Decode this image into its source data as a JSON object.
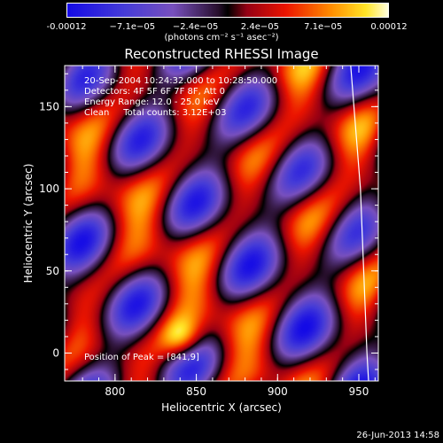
{
  "colorbar": {
    "ticks": [
      "-0.00012",
      "−7.1e−05",
      "−2.4e−05",
      "2.4e−05",
      "7.1e−05",
      "0.00012"
    ],
    "tick_values": [
      -0.00012,
      -7.1e-05,
      -2.4e-05,
      2.4e-05,
      7.1e-05,
      0.00012
    ],
    "units": "(photons cm⁻² s⁻¹ asec⁻²)",
    "range": [
      -0.00012,
      0.00012
    ]
  },
  "chart_data": {
    "type": "heatmap",
    "title": "Reconstructed RHESSI Image",
    "xlabel": "Heliocentric X (arcsec)",
    "ylabel": "Heliocentric Y (arcsec)",
    "xlim": [
      769,
      962
    ],
    "ylim": [
      -17,
      175
    ],
    "xticks": [
      "800",
      "850",
      "900",
      "950"
    ],
    "xtick_values": [
      800,
      850,
      900,
      950
    ],
    "yticks": [
      "0",
      "50",
      "100",
      "150"
    ],
    "ytick_values": [
      0,
      50,
      100,
      150
    ],
    "limb_x_at_y": [
      [
        945,
        175
      ],
      [
        951,
        100
      ],
      [
        955,
        0
      ],
      [
        956,
        -17
      ]
    ],
    "peak": [
      841,
      9
    ]
  },
  "annotations": {
    "line1": "20-Sep-2004 10:24:32.000 to 10:28:50.000",
    "line2": "Detectors: 4F 5F 6F 7F 8F, Att 0",
    "line3": "Energy Range: 12.0 - 25.0 keV",
    "line4": "Clean     Total counts: 3.12E+03",
    "peak_text": "Position of Peak = [841,9]"
  },
  "timestamp": "26-Jun-2013 14:58"
}
